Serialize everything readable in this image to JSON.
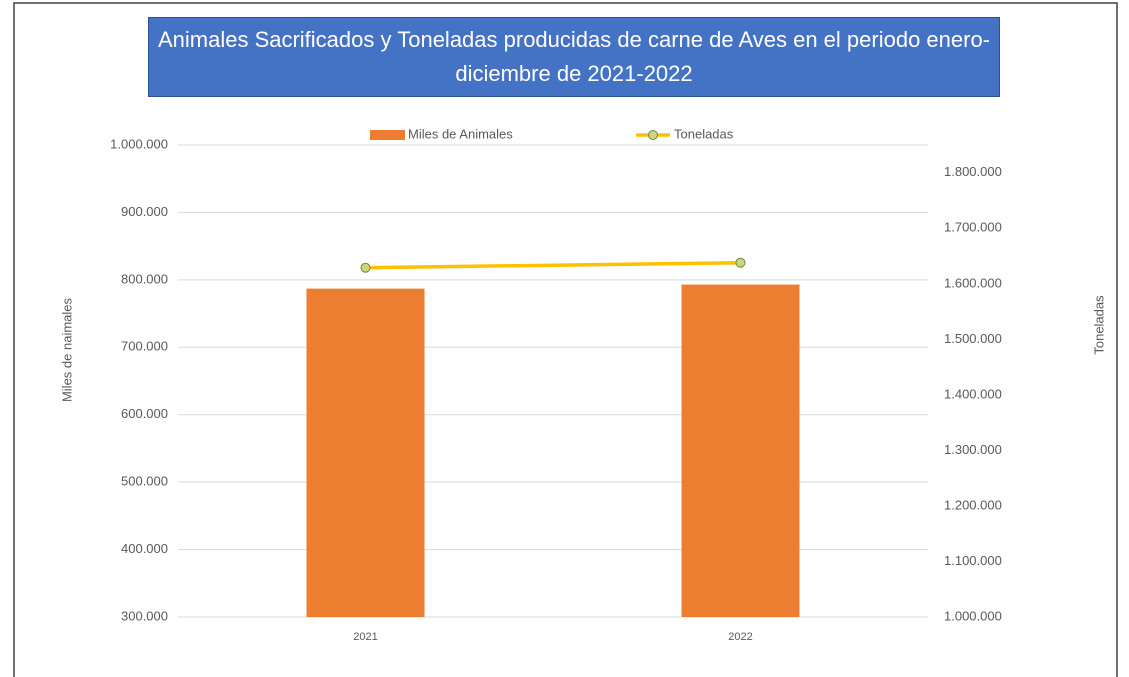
{
  "chart_data": {
    "type": "bar_line",
    "title": "Animales Sacrificados y Toneladas producidas de carne de Aves en el periodo enero-diciembre de 2021-2022",
    "categories": [
      "2021",
      "2022"
    ],
    "series": [
      {
        "name": "Miles de Animales",
        "color": "#ed7d31",
        "type": "bar",
        "axis": "y",
        "values": [
          787000,
          793000
        ]
      },
      {
        "name": "Toneladas",
        "color": "#ffc000",
        "type": "line",
        "axis": "y2",
        "values": [
          1629000,
          1638000
        ]
      }
    ],
    "ylabel": "Miles de naimales",
    "y2label": "Toneladas",
    "ylim": [
      300000,
      1000000
    ],
    "yticks": [
      {
        "value": 300000,
        "label": "300.000"
      },
      {
        "value": 400000,
        "label": "400.000"
      },
      {
        "value": 500000,
        "label": "500.000"
      },
      {
        "value": 600000,
        "label": "600.000"
      },
      {
        "value": 700000,
        "label": "700.000"
      },
      {
        "value": 800000,
        "label": "800.000"
      },
      {
        "value": 900000,
        "label": "900.000"
      },
      {
        "value": 1000000,
        "label": "1.000.000"
      }
    ],
    "y2lim": [
      1000000,
      1850000
    ],
    "y2ticks": [
      {
        "value": 1000000,
        "label": "1.000.000"
      },
      {
        "value": 1100000,
        "label": "1.100.000"
      },
      {
        "value": 1200000,
        "label": "1.200.000"
      },
      {
        "value": 1300000,
        "label": "1.300.000"
      },
      {
        "value": 1400000,
        "label": "1.400.000"
      },
      {
        "value": 1500000,
        "label": "1.500.000"
      },
      {
        "value": 1600000,
        "label": "1.600.000"
      },
      {
        "value": 1700000,
        "label": "1.700.000"
      },
      {
        "value": 1800000,
        "label": "1.800.000"
      }
    ],
    "grid": true,
    "legend": "top"
  }
}
